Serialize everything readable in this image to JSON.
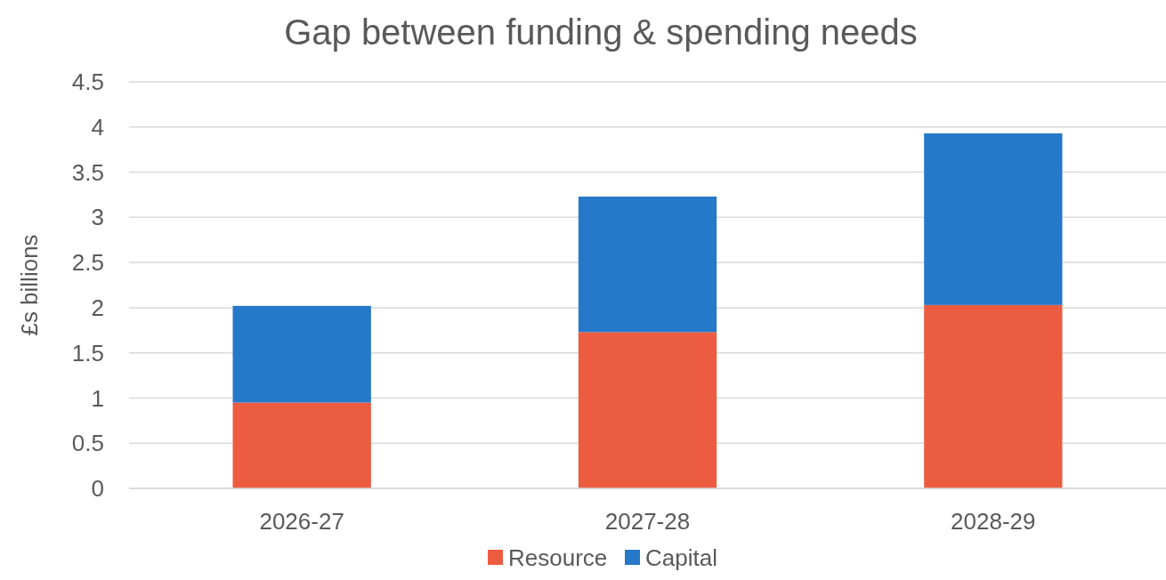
{
  "chart_data": {
    "type": "bar",
    "title": "Gap between funding & spending needs",
    "ylabel": "£s billions",
    "categories": [
      "2026-27",
      "2027-28",
      "2028-29"
    ],
    "series": [
      {
        "name": "Resource",
        "color": "#eb5c41",
        "values": [
          0.95,
          1.73,
          2.03
        ]
      },
      {
        "name": "Capital",
        "color": "#2678c9",
        "values": [
          1.07,
          1.5,
          1.9
        ]
      }
    ],
    "stacked": true,
    "ylim": [
      0,
      4.5
    ],
    "yticks": [
      0,
      0.5,
      1,
      1.5,
      2,
      2.5,
      3,
      3.5,
      4,
      4.5
    ],
    "grid": "y",
    "legend": "bottom"
  }
}
